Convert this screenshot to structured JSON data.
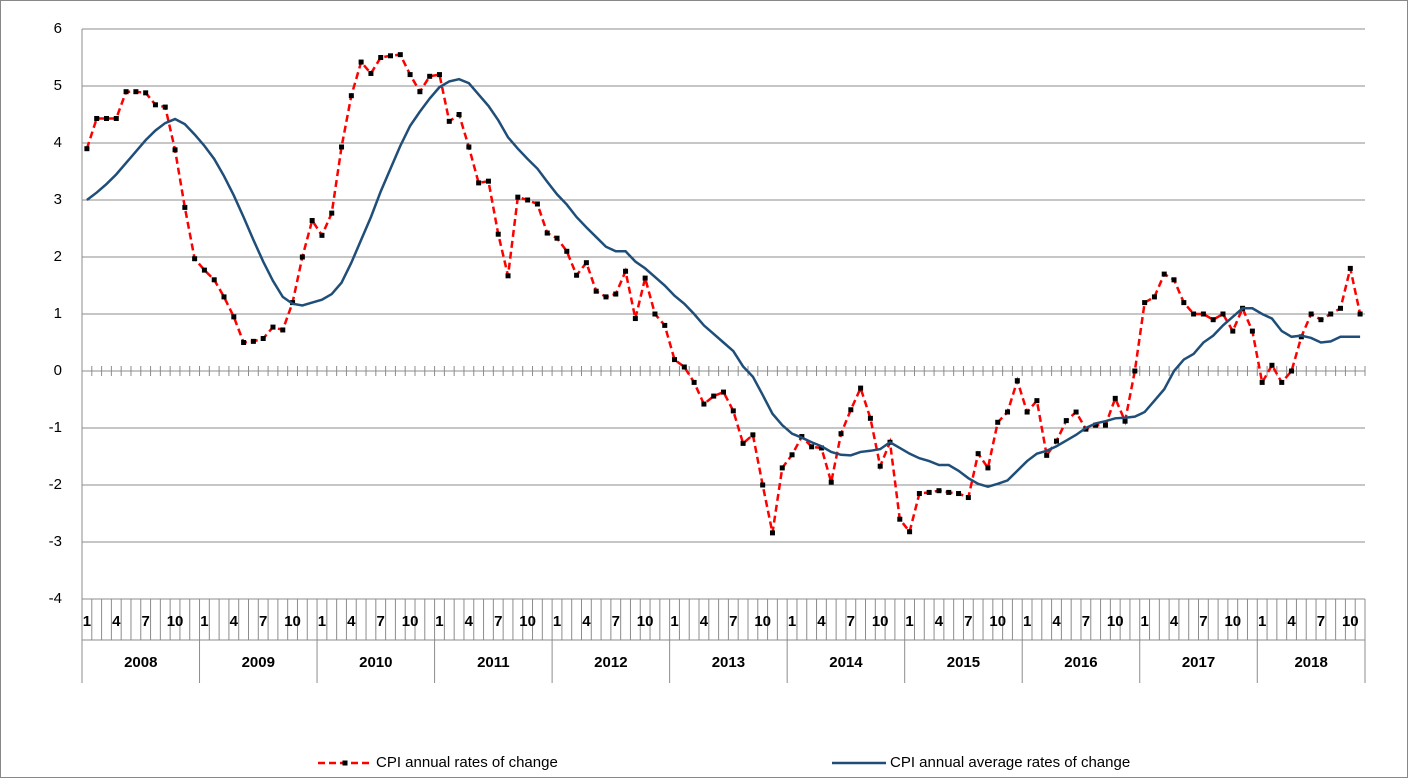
{
  "chart_data": {
    "type": "line",
    "categories": [
      "1",
      null,
      null,
      "4",
      null,
      null,
      "7",
      null,
      null,
      "10",
      null,
      null,
      "1",
      null,
      null,
      "4",
      null,
      null,
      "7",
      null,
      null,
      "10",
      null,
      null,
      "1",
      null,
      null,
      "4",
      null,
      null,
      "7",
      null,
      null,
      "10",
      null,
      null,
      "1",
      null,
      null,
      "4",
      null,
      null,
      "7",
      null,
      null,
      "10",
      null,
      null,
      "1",
      null,
      null,
      "4",
      null,
      null,
      "7",
      null,
      null,
      "10",
      null,
      null,
      "1",
      null,
      null,
      "4",
      null,
      null,
      "7",
      null,
      null,
      "10",
      null,
      null,
      "1",
      null,
      null,
      "4",
      null,
      null,
      "7",
      null,
      null,
      "10",
      null,
      null,
      "1",
      null,
      null,
      "4",
      null,
      null,
      "7",
      null,
      null,
      "10",
      null,
      null,
      "1",
      null,
      null,
      "4",
      null,
      null,
      "7",
      null,
      null,
      "10",
      null,
      null,
      "1",
      null,
      null,
      "4",
      null,
      null,
      "7",
      null,
      null,
      "10",
      null,
      null,
      "1",
      null,
      null,
      "4",
      null,
      null,
      "7",
      null,
      null,
      "10",
      null
    ],
    "years": [
      "2008",
      "2009",
      "2010",
      "2011",
      "2012",
      "2013",
      "2014",
      "2015",
      "2016",
      "2017",
      "2018"
    ],
    "ylim": [
      -4,
      6
    ],
    "yticks": [
      -4,
      -3,
      -2,
      -1,
      0,
      1,
      2,
      3,
      4,
      5,
      6
    ],
    "grid": true,
    "legend": "bottom",
    "series": [
      {
        "name": "CPI annual rates of change",
        "color": "#ff0000",
        "dashed": true,
        "markers": true,
        "marker_color": "#000000",
        "values": [
          3.9,
          4.43,
          4.43,
          4.43,
          4.9,
          4.9,
          4.88,
          4.67,
          4.63,
          3.88,
          2.87,
          1.97,
          1.77,
          1.6,
          1.3,
          0.95,
          0.5,
          0.52,
          0.57,
          0.77,
          0.72,
          1.2,
          2.0,
          2.64,
          2.38,
          2.77,
          3.93,
          4.83,
          5.42,
          5.22,
          5.5,
          5.53,
          5.55,
          5.2,
          4.9,
          5.17,
          5.2,
          4.38,
          4.5,
          3.93,
          3.3,
          3.33,
          2.4,
          1.67,
          3.05,
          3.0,
          2.93,
          2.42,
          2.33,
          2.1,
          1.68,
          1.9,
          1.4,
          1.3,
          1.35,
          1.75,
          0.92,
          1.63,
          1.0,
          0.8,
          0.2,
          0.07,
          -0.2,
          -0.58,
          -0.44,
          -0.37,
          -0.7,
          -1.27,
          -1.12,
          -2.0,
          -2.84,
          -1.7,
          -1.47,
          -1.15,
          -1.33,
          -1.35,
          -1.95,
          -1.1,
          -0.68,
          -0.3,
          -0.83,
          -1.67,
          -1.25,
          -2.6,
          -2.82,
          -2.15,
          -2.13,
          -2.1,
          -2.13,
          -2.15,
          -2.22,
          -1.45,
          -1.7,
          -0.9,
          -0.72,
          -0.17,
          -0.72,
          -0.52,
          -1.48,
          -1.23,
          -0.87,
          -0.72,
          -1.02,
          -0.95,
          -0.95,
          -0.48,
          -0.88,
          0.0,
          1.2,
          1.3,
          1.7,
          1.6,
          1.2,
          1.0,
          1.0,
          0.9,
          1.0,
          0.7,
          1.1,
          0.7,
          -0.2,
          0.1,
          -0.2,
          0.0,
          0.6,
          1.0,
          0.9,
          1.0,
          1.1,
          1.8,
          1.0
        ]
      },
      {
        "name": "CPI annual average rates of change",
        "color": "#1f4e79",
        "dashed": false,
        "markers": false,
        "values": [
          3.0,
          3.13,
          3.28,
          3.45,
          3.65,
          3.85,
          4.05,
          4.22,
          4.35,
          4.42,
          4.33,
          4.15,
          3.95,
          3.72,
          3.42,
          3.08,
          2.7,
          2.3,
          1.92,
          1.58,
          1.3,
          1.18,
          1.15,
          1.2,
          1.25,
          1.35,
          1.55,
          1.9,
          2.3,
          2.7,
          3.15,
          3.55,
          3.95,
          4.3,
          4.55,
          4.78,
          4.98,
          5.08,
          5.12,
          5.05,
          4.85,
          4.65,
          4.4,
          4.1,
          3.9,
          3.72,
          3.55,
          3.32,
          3.1,
          2.92,
          2.7,
          2.52,
          2.35,
          2.18,
          2.1,
          2.1,
          1.92,
          1.8,
          1.65,
          1.5,
          1.32,
          1.18,
          1.0,
          0.8,
          0.65,
          0.5,
          0.35,
          0.08,
          -0.1,
          -0.42,
          -0.75,
          -0.95,
          -1.1,
          -1.17,
          -1.25,
          -1.32,
          -1.42,
          -1.47,
          -1.48,
          -1.42,
          -1.4,
          -1.37,
          -1.25,
          -1.35,
          -1.45,
          -1.53,
          -1.58,
          -1.65,
          -1.65,
          -1.75,
          -1.88,
          -1.98,
          -2.03,
          -1.98,
          -1.92,
          -1.75,
          -1.58,
          -1.45,
          -1.4,
          -1.32,
          -1.22,
          -1.12,
          -1.0,
          -0.92,
          -0.88,
          -0.83,
          -0.82,
          -0.8,
          -0.72,
          -0.52,
          -0.32,
          0.0,
          0.2,
          0.3,
          0.5,
          0.62,
          0.8,
          0.95,
          1.1,
          1.1,
          1.0,
          0.92,
          0.7,
          0.6,
          0.62,
          0.58,
          0.5,
          0.52,
          0.6,
          0.6,
          0.6
        ]
      }
    ]
  }
}
